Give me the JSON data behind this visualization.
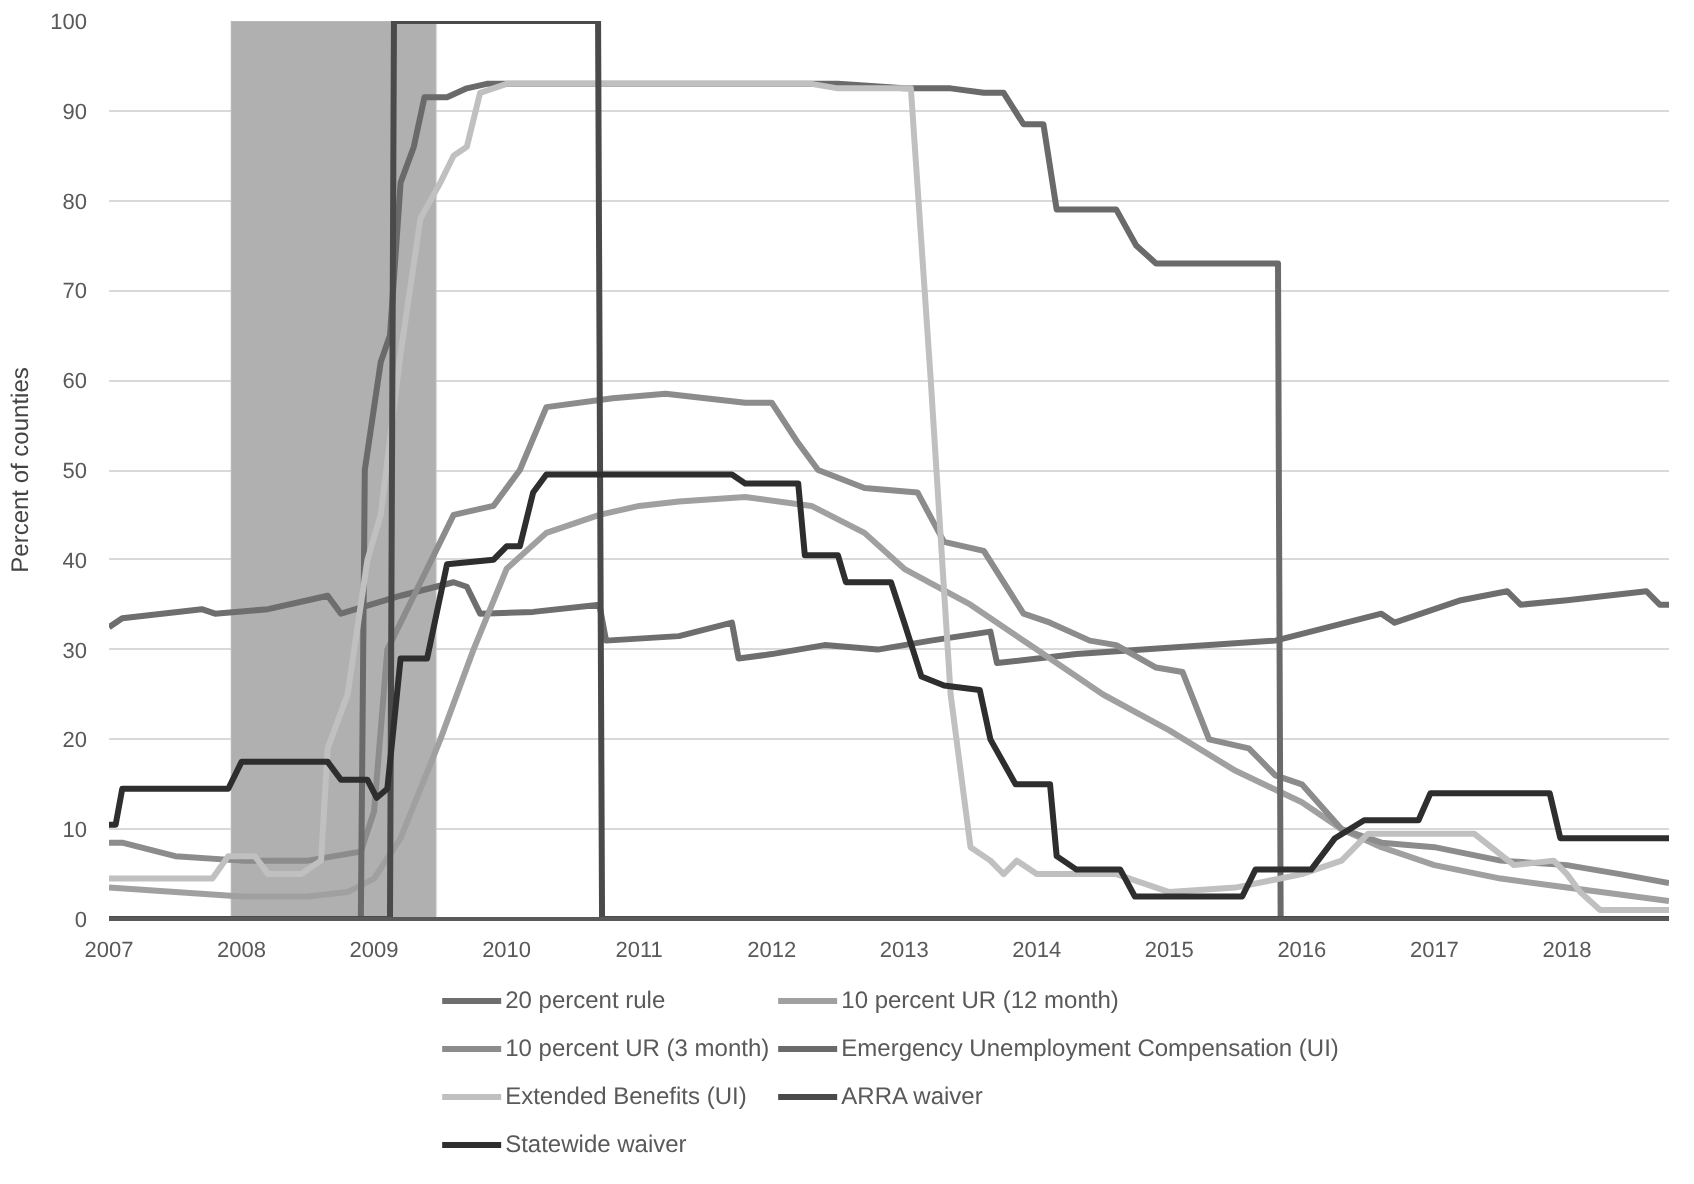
{
  "chart_data": {
    "type": "line",
    "ylabel": "Percent of counties",
    "xlim": [
      2007,
      2018.77
    ],
    "ylim": [
      0,
      100
    ],
    "xticks": [
      2007,
      2008,
      2009,
      2010,
      2011,
      2012,
      2013,
      2014,
      2015,
      2016,
      2017,
      2018
    ],
    "yticks": [
      0,
      10,
      20,
      30,
      40,
      50,
      60,
      70,
      80,
      90,
      100
    ],
    "grid": "y",
    "legend": "bottom",
    "line_style": "solid",
    "bands": [
      {
        "axis": "x",
        "from": 2007.92,
        "to": 2009.47,
        "color": "#b0b0b0"
      }
    ],
    "series": [
      {
        "name": "20 percent rule",
        "color": "#6e6e6e",
        "x": [
          2007,
          2007.1,
          2007.4,
          2007.7,
          2007.8,
          2008.2,
          2008.5,
          2008.65,
          2008.75,
          2009.2,
          2009.6,
          2009.7,
          2009.8,
          2010.2,
          2010.7,
          2010.75,
          2011.3,
          2011.7,
          2011.75,
          2012.0,
          2012.4,
          2012.8,
          2013.2,
          2013.65,
          2013.7,
          2014.3,
          2014.8,
          2015.3,
          2015.8,
          2016.2,
          2016.6,
          2016.7,
          2017.2,
          2017.55,
          2017.65,
          2018.0,
          2018.6,
          2018.7,
          2018.77
        ],
        "values": [
          32.5,
          33.5,
          34,
          34.5,
          34,
          34.5,
          35.5,
          36,
          34,
          36,
          37.5,
          37,
          34,
          34.2,
          35,
          31,
          31.5,
          33,
          29,
          29.5,
          30.5,
          30,
          31,
          32,
          28.5,
          29.5,
          30,
          30.5,
          31,
          32.5,
          34,
          33,
          35.5,
          36.5,
          35,
          35.5,
          36.5,
          35,
          35
        ]
      },
      {
        "name": "10 percent UR (12 month)",
        "color": "#a0a0a0",
        "x": [
          2007,
          2007.5,
          2008.0,
          2008.5,
          2008.8,
          2009.0,
          2009.2,
          2009.5,
          2009.75,
          2010.0,
          2010.3,
          2010.7,
          2011.0,
          2011.3,
          2011.8,
          2012.3,
          2012.7,
          2013.0,
          2013.5,
          2014.0,
          2014.5,
          2015.0,
          2015.5,
          2016.0,
          2016.3,
          2016.6,
          2017.0,
          2017.5,
          2018.0,
          2018.77
        ],
        "values": [
          3.5,
          3,
          2.5,
          2.5,
          3,
          4.5,
          9,
          20,
          30,
          39,
          43,
          45,
          46,
          46.5,
          47,
          46,
          43,
          39,
          35,
          30,
          25,
          21,
          16.5,
          13,
          10,
          8,
          6,
          4.5,
          3.5,
          2
        ]
      },
      {
        "name": "10 percent UR (3 month)",
        "color": "#8c8c8c",
        "x": [
          2007,
          2007.1,
          2007.5,
          2008.0,
          2008.5,
          2008.9,
          2009.0,
          2009.1,
          2009.3,
          2009.6,
          2009.9,
          2010.1,
          2010.3,
          2010.8,
          2011.2,
          2011.8,
          2012.0,
          2012.2,
          2012.35,
          2012.7,
          2013.1,
          2013.3,
          2013.6,
          2013.9,
          2014.1,
          2014.4,
          2014.6,
          2014.9,
          2015.1,
          2015.3,
          2015.6,
          2015.8,
          2016.0,
          2016.3,
          2016.6,
          2017.0,
          2017.5,
          2018.0,
          2018.4,
          2018.77
        ],
        "values": [
          8.5,
          8.5,
          7,
          6.5,
          6.5,
          7.5,
          12,
          30,
          36,
          45,
          46,
          50,
          57,
          58,
          58.5,
          57.5,
          57.5,
          53,
          50,
          48,
          47.5,
          42,
          41,
          34,
          33,
          31,
          30.5,
          28,
          27.5,
          20,
          19,
          16,
          15,
          10,
          8.5,
          8,
          6.5,
          6,
          5,
          4
        ]
      },
      {
        "name": "Emergency Unemployment Compensation (UI)",
        "color": "#6a6a6a",
        "x": [
          2007,
          2008.9,
          2008.93,
          2009.05,
          2009.12,
          2009.2,
          2009.3,
          2009.38,
          2009.55,
          2009.7,
          2009.85,
          2012.5,
          2013.0,
          2013.35,
          2013.6,
          2013.75,
          2013.9,
          2014.05,
          2014.15,
          2014.6,
          2014.75,
          2014.9,
          2015.82,
          2015.84,
          2018.77
        ],
        "values": [
          0,
          0,
          50,
          62,
          65,
          82,
          86,
          91.5,
          91.5,
          92.5,
          93,
          93,
          92.5,
          92.5,
          92,
          92,
          88.5,
          88.5,
          79,
          79,
          75,
          73,
          73,
          0,
          0
        ]
      },
      {
        "name": "Extended Benefits (UI)",
        "color": "#c0c0c0",
        "x": [
          2007,
          2007.78,
          2007.9,
          2008.1,
          2008.2,
          2008.45,
          2008.6,
          2008.65,
          2008.8,
          2008.95,
          2009.05,
          2009.2,
          2009.35,
          2009.5,
          2009.6,
          2009.7,
          2009.8,
          2010.0,
          2012.3,
          2012.5,
          2013.05,
          2013.2,
          2013.35,
          2013.5,
          2013.65,
          2013.75,
          2013.85,
          2014.0,
          2014.6,
          2015.0,
          2015.5,
          2016.0,
          2016.3,
          2016.5,
          2017.3,
          2017.6,
          2017.9,
          2018.0,
          2018.1,
          2018.25,
          2018.77
        ],
        "values": [
          4.5,
          4.5,
          7,
          7,
          5,
          5,
          6.5,
          19,
          25,
          40,
          45,
          63,
          78,
          82,
          85,
          86,
          92,
          93,
          93,
          92.5,
          92.5,
          60,
          25,
          8,
          6.5,
          5,
          6.5,
          5,
          5,
          3,
          3.5,
          5,
          6.5,
          9.5,
          9.5,
          6,
          6.5,
          5,
          3,
          1,
          1
        ]
      },
      {
        "name": "ARRA waiver",
        "color": "#4a4a4a",
        "x": [
          2007,
          2009.12,
          2009.15,
          2010.69,
          2010.72,
          2018.77
        ],
        "values": [
          0,
          0,
          100,
          100,
          0,
          0
        ]
      },
      {
        "name": "Statewide waiver",
        "color": "#2e2e2e",
        "x": [
          2007,
          2007.05,
          2007.1,
          2007.9,
          2008.0,
          2008.65,
          2008.75,
          2008.95,
          2009.02,
          2009.1,
          2009.2,
          2009.4,
          2009.55,
          2009.9,
          2010.0,
          2010.1,
          2010.2,
          2010.3,
          2011.7,
          2011.8,
          2012.2,
          2012.25,
          2012.5,
          2012.56,
          2012.9,
          2013.0,
          2013.13,
          2013.3,
          2013.57,
          2013.65,
          2013.84,
          2014.1,
          2014.15,
          2014.3,
          2014.63,
          2014.74,
          2015.55,
          2015.65,
          2016.07,
          2016.25,
          2016.47,
          2016.88,
          2016.97,
          2017.87,
          2017.95,
          2018.77
        ],
        "values": [
          10.5,
          10.5,
          14.5,
          14.5,
          17.5,
          17.5,
          15.5,
          15.5,
          13.5,
          14.5,
          29,
          29,
          39.5,
          40,
          41.5,
          41.5,
          47.5,
          49.5,
          49.5,
          48.5,
          48.5,
          40.5,
          40.5,
          37.5,
          37.5,
          33,
          27,
          26,
          25.5,
          20,
          15,
          15,
          7,
          5.5,
          5.5,
          2.5,
          2.5,
          5.5,
          5.5,
          9,
          11,
          11,
          14,
          14,
          9,
          9
        ]
      }
    ]
  }
}
